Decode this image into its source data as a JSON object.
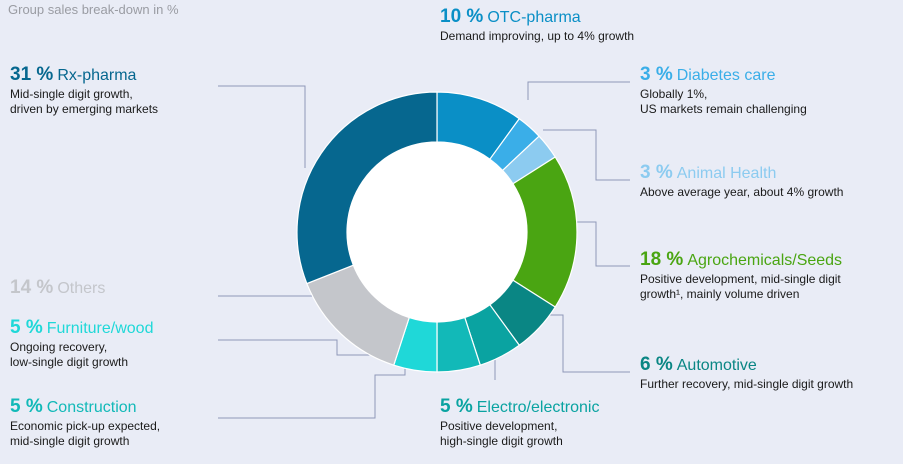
{
  "chart_data": {
    "type": "pie",
    "title": "Group sales break-down in %",
    "categories": [
      "OTC-pharma",
      "Diabetes care",
      "Animal Health",
      "Agrochemicals/Seeds",
      "Automotive",
      "Electro/electronic",
      "Construction",
      "Furniture/wood",
      "Others",
      "Rx-pharma"
    ],
    "values": [
      10,
      3,
      3,
      18,
      6,
      5,
      5,
      5,
      14,
      31
    ],
    "value_labels": [
      "10 %",
      "3 %",
      "3 %",
      "18 %",
      "6 %",
      "5 %",
      "5 %",
      "5 %",
      "14 %",
      "31 %"
    ],
    "colors": [
      "#0a8fc6",
      "#3aaee8",
      "#8ccbf0",
      "#4aa512",
      "#0a8684",
      "#0aa3a1",
      "#12b9b8",
      "#1fd8d8",
      "#c4c6cb",
      "#06678f"
    ],
    "descriptions": [
      [
        "Demand improving, up to 4% growth"
      ],
      [
        "Globally 1%,",
        "US markets remain challenging"
      ],
      [
        "Above average year, about 4% growth"
      ],
      [
        "Positive development, mid-single digit",
        "growth¹, mainly volume driven"
      ],
      [
        "Further recovery, mid-single digit growth"
      ],
      [
        "Positive development,",
        "high-single digit growth"
      ],
      [
        "Economic pick-up expected,",
        "mid-single digit growth"
      ],
      [
        "Ongoing recovery,",
        "low-single digit growth"
      ],
      [],
      [
        "Mid-single digit growth,",
        "driven by emerging markets"
      ]
    ],
    "donut": true
  }
}
